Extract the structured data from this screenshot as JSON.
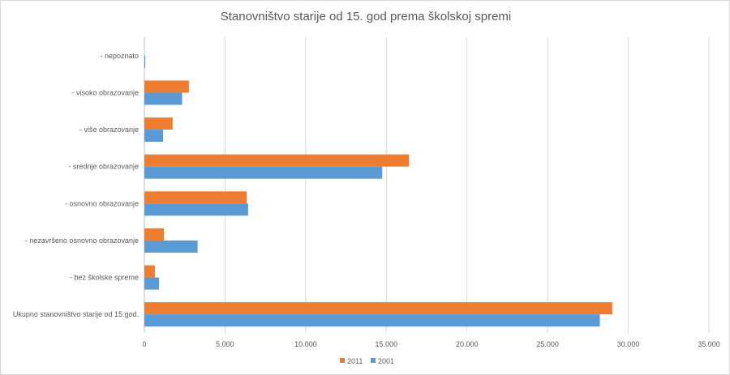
{
  "chart_data": {
    "type": "bar",
    "orientation": "horizontal",
    "title": "Stanovništvo starije od 15. god prema školskoj spremi",
    "categories": [
      "Ukupno stanovništvo starije od 15.god.",
      "- bez školske spreme",
      "- nezavršeno osnovno obrazovanje",
      "- osnovno obrazovanje",
      "- srednje obrazovanje",
      "- više obrazovanje",
      "- visoko obrazovanje",
      "- nepoznato"
    ],
    "series": [
      {
        "name": "2011",
        "color": "#ED7D31",
        "values": [
          29010,
          650,
          1210,
          6350,
          16410,
          1750,
          2760,
          0
        ]
      },
      {
        "name": "2001",
        "color": "#5B9BD5",
        "values": [
          28240,
          910,
          3300,
          6430,
          14750,
          1160,
          2340,
          60
        ]
      }
    ],
    "xlim": [
      0,
      35000
    ],
    "xticks": [
      "0",
      "5.000",
      "10.000",
      "15.000",
      "20.000",
      "25.000",
      "30.000",
      "35.000"
    ],
    "grid": true,
    "legend_position": "bottom",
    "legend": [
      "2011",
      "2001"
    ]
  }
}
